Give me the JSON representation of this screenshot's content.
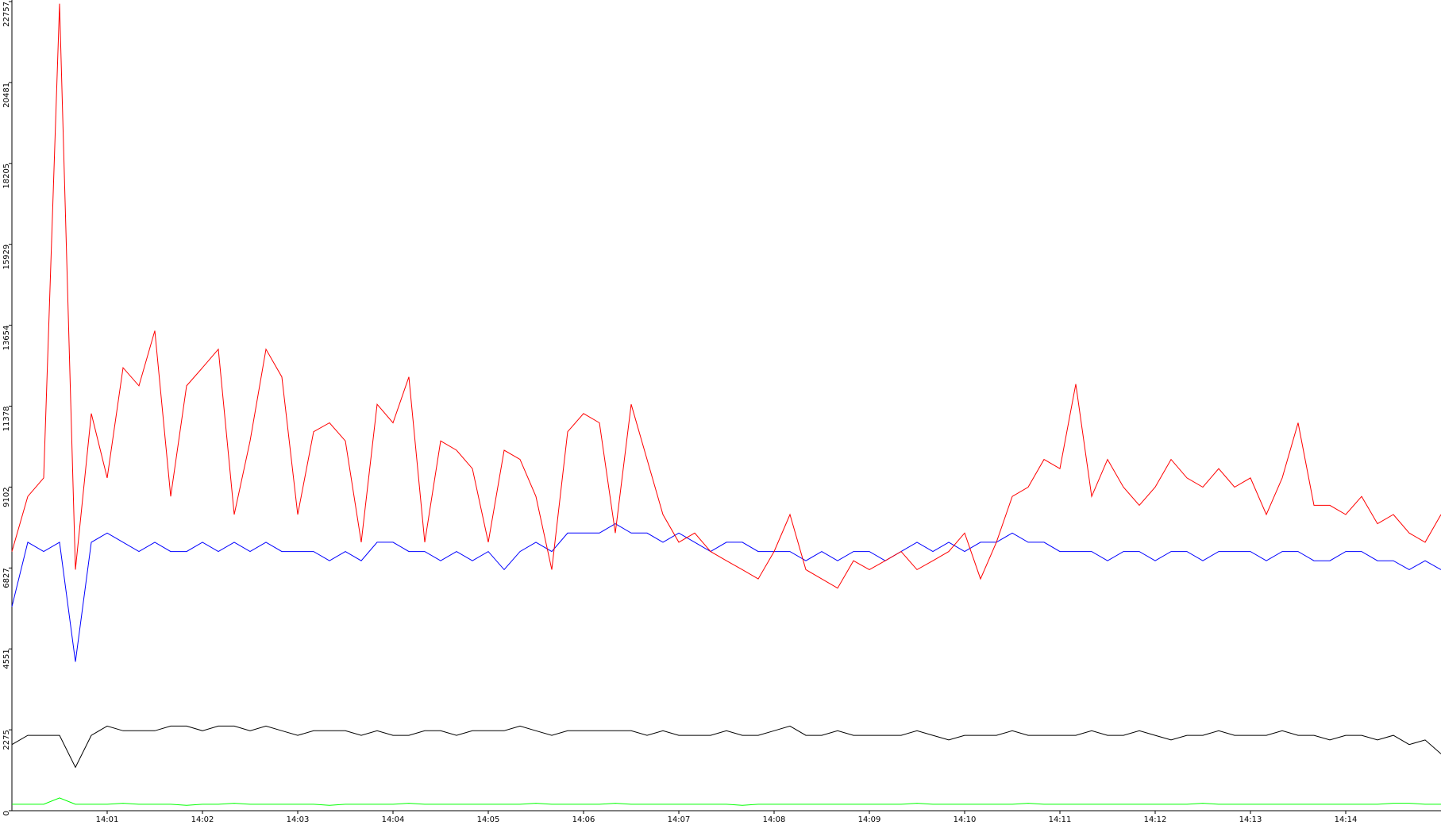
{
  "chart_data": {
    "type": "line",
    "x": [
      "14:00:00",
      "14:00:10",
      "14:00:20",
      "14:00:30",
      "14:00:40",
      "14:00:50",
      "14:01:00",
      "14:01:10",
      "14:01:20",
      "14:01:30",
      "14:01:40",
      "14:01:50",
      "14:02:00",
      "14:02:10",
      "14:02:20",
      "14:02:30",
      "14:02:40",
      "14:02:50",
      "14:03:00",
      "14:03:10",
      "14:03:20",
      "14:03:30",
      "14:03:40",
      "14:03:50",
      "14:04:00",
      "14:04:10",
      "14:04:20",
      "14:04:30",
      "14:04:40",
      "14:04:50",
      "14:05:00",
      "14:05:10",
      "14:05:20",
      "14:05:30",
      "14:05:40",
      "14:05:50",
      "14:06:00",
      "14:06:10",
      "14:06:20",
      "14:06:30",
      "14:06:40",
      "14:06:50",
      "14:07:00",
      "14:07:10",
      "14:07:20",
      "14:07:30",
      "14:07:40",
      "14:07:50",
      "14:08:00",
      "14:08:10",
      "14:08:20",
      "14:08:30",
      "14:08:40",
      "14:08:50",
      "14:09:00",
      "14:09:10",
      "14:09:20",
      "14:09:30",
      "14:09:40",
      "14:09:50",
      "14:10:00",
      "14:10:10",
      "14:10:20",
      "14:10:30",
      "14:10:40",
      "14:10:50",
      "14:11:00",
      "14:11:10",
      "14:11:20",
      "14:11:30",
      "14:11:40",
      "14:11:50",
      "14:12:00",
      "14:12:10",
      "14:12:20",
      "14:12:30",
      "14:12:40",
      "14:12:50",
      "14:13:00",
      "14:13:10",
      "14:13:20",
      "14:13:30",
      "14:13:40",
      "14:13:50",
      "14:14:00",
      "14:14:10",
      "14:14:20",
      "14:14:30",
      "14:14:40",
      "14:14:50",
      "14:15:00"
    ],
    "series": [
      {
        "color": "#ff0000",
        "values": [
          7290,
          8840,
          9360,
          22700,
          6780,
          11170,
          9360,
          12460,
          11950,
          13500,
          8840,
          11950,
          12460,
          12980,
          8330,
          10400,
          12980,
          12200,
          8330,
          10660,
          10910,
          10400,
          7550,
          11430,
          10910,
          12200,
          7550,
          10400,
          10140,
          9620,
          7550,
          10140,
          9880,
          8840,
          6780,
          10660,
          11170,
          10910,
          7810,
          11430,
          9880,
          8330,
          7550,
          7810,
          7290,
          7030,
          6780,
          6520,
          7290,
          8330,
          6780,
          6520,
          6260,
          7030,
          6780,
          7030,
          7290,
          6780,
          7030,
          7290,
          7810,
          6520,
          7550,
          8840,
          9100,
          9880,
          9620,
          12000,
          8840,
          9880,
          9100,
          8590,
          9100,
          9880,
          9360,
          9100,
          9620,
          9100,
          9360,
          8330,
          9360,
          10910,
          8590,
          8590,
          8330,
          8840,
          8070,
          8330,
          7810,
          7550,
          8330
        ]
      },
      {
        "color": "#0000ff",
        "values": [
          5740,
          7550,
          7290,
          7550,
          4190,
          7550,
          7810,
          7550,
          7290,
          7550,
          7290,
          7290,
          7550,
          7290,
          7550,
          7290,
          7550,
          7290,
          7290,
          7290,
          7030,
          7290,
          7030,
          7550,
          7550,
          7290,
          7290,
          7030,
          7290,
          7030,
          7290,
          6780,
          7290,
          7550,
          7290,
          7810,
          7810,
          7810,
          8070,
          7810,
          7810,
          7550,
          7810,
          7550,
          7290,
          7550,
          7550,
          7290,
          7290,
          7290,
          7030,
          7290,
          7030,
          7290,
          7290,
          7030,
          7290,
          7550,
          7290,
          7550,
          7290,
          7550,
          7550,
          7810,
          7550,
          7550,
          7290,
          7290,
          7290,
          7030,
          7290,
          7290,
          7030,
          7290,
          7290,
          7030,
          7290,
          7290,
          7290,
          7030,
          7290,
          7290,
          7030,
          7030,
          7290,
          7290,
          7030,
          7030,
          6780,
          7030,
          6780
        ]
      },
      {
        "color": "#000000",
        "values": [
          1860,
          2120,
          2120,
          2120,
          1220,
          2120,
          2380,
          2250,
          2250,
          2250,
          2380,
          2380,
          2250,
          2380,
          2380,
          2250,
          2380,
          2250,
          2120,
          2250,
          2250,
          2250,
          2120,
          2250,
          2120,
          2120,
          2250,
          2250,
          2120,
          2250,
          2250,
          2250,
          2380,
          2250,
          2120,
          2250,
          2250,
          2250,
          2250,
          2250,
          2120,
          2250,
          2120,
          2120,
          2120,
          2250,
          2120,
          2120,
          2250,
          2380,
          2120,
          2120,
          2250,
          2120,
          2120,
          2120,
          2120,
          2250,
          2120,
          1990,
          2120,
          2120,
          2120,
          2250,
          2120,
          2120,
          2120,
          2120,
          2250,
          2120,
          2120,
          2250,
          2120,
          1990,
          2120,
          2120,
          2250,
          2120,
          2120,
          2120,
          2250,
          2120,
          2120,
          1990,
          2120,
          2120,
          1990,
          2120,
          1860,
          1990,
          1600
        ]
      },
      {
        "color": "#00ff00",
        "values": [
          180,
          180,
          180,
          360,
          180,
          180,
          180,
          210,
          180,
          180,
          180,
          150,
          180,
          180,
          210,
          180,
          180,
          180,
          180,
          180,
          150,
          180,
          180,
          180,
          180,
          210,
          180,
          180,
          180,
          180,
          180,
          180,
          180,
          210,
          180,
          180,
          180,
          180,
          210,
          180,
          180,
          180,
          180,
          180,
          180,
          180,
          150,
          180,
          180,
          180,
          180,
          180,
          180,
          180,
          180,
          180,
          180,
          210,
          180,
          180,
          180,
          180,
          180,
          180,
          210,
          180,
          180,
          180,
          180,
          180,
          180,
          180,
          180,
          180,
          180,
          210,
          180,
          180,
          180,
          180,
          180,
          180,
          180,
          180,
          180,
          180,
          180,
          210,
          210,
          180,
          180
        ]
      }
    ],
    "xlim": [
      "14:00",
      "14:15"
    ],
    "xticks": [
      "14:01",
      "14:02",
      "14:03",
      "14:04",
      "14:05",
      "14:06",
      "14:07",
      "14:08",
      "14:09",
      "14:10",
      "14:11",
      "14:12",
      "14:13",
      "14:14"
    ],
    "ylim": [
      0,
      22757
    ],
    "yticks": [
      0,
      2275,
      4551,
      6827,
      9102,
      11378,
      13654,
      15929,
      18205,
      20481,
      22757
    ]
  }
}
